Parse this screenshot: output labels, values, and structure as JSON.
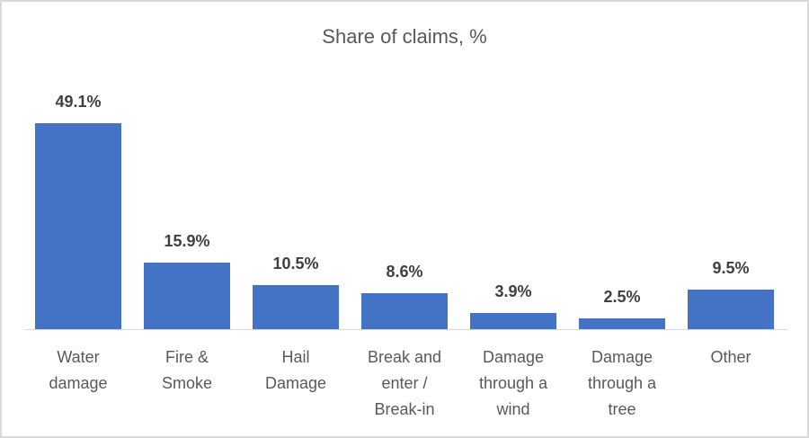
{
  "chart_data": {
    "type": "bar",
    "title": "Share of claims, %",
    "categories": [
      "Water damage",
      "Fire & Smoke",
      "Hail Damage",
      "Break and enter / Break-in",
      "Damage through a wind",
      "Damage through a tree",
      "Other"
    ],
    "category_lines": [
      "Water\ndamage",
      "Fire &\nSmoke",
      "Hail\nDamage",
      "Break and\nenter /\nBreak-in",
      "Damage\nthrough a\nwind",
      "Damage\nthrough a\ntree",
      "Other"
    ],
    "values": [
      49.1,
      15.9,
      10.5,
      8.6,
      3.9,
      2.5,
      9.5
    ],
    "labels": [
      "49.1%",
      "15.9%",
      "10.5%",
      "8.6%",
      "3.9%",
      "2.5%",
      "9.5%"
    ],
    "xlabel": "",
    "ylabel": "",
    "ylim": [
      0,
      50
    ],
    "grid": false,
    "legend": "none",
    "color": "#4472c4"
  }
}
